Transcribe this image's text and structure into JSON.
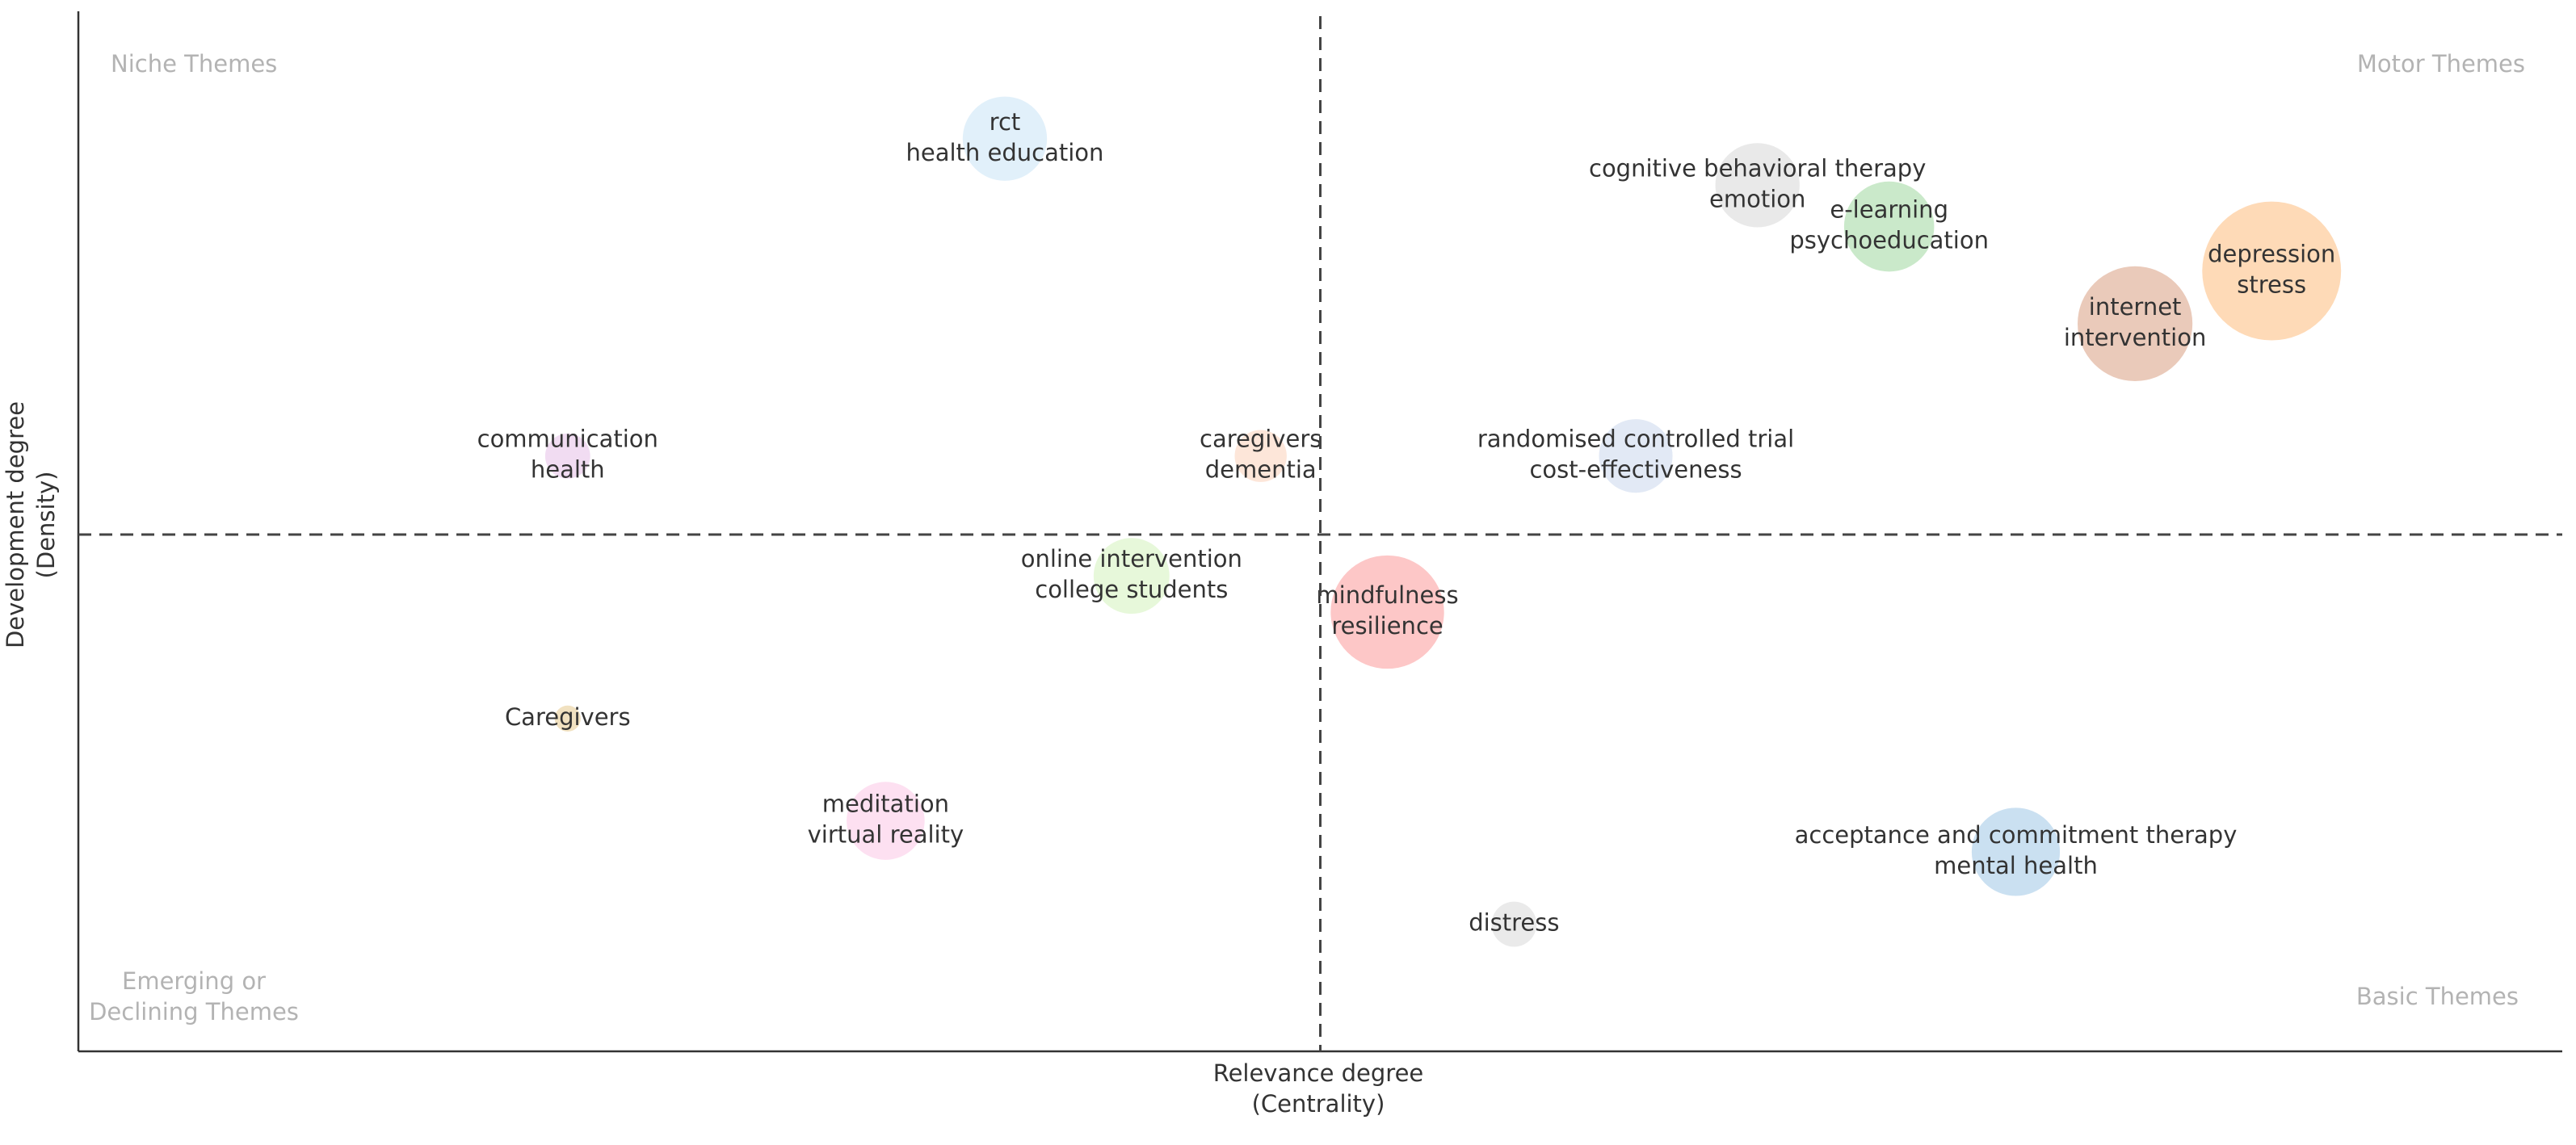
{
  "chart_data": {
    "type": "scatter",
    "subtype": "bubble",
    "title": "",
    "xlabel": [
      "Relevance degree",
      "(Centrality)"
    ],
    "ylabel": [
      "Development degree",
      "(Density)"
    ],
    "xlim": [
      0,
      100
    ],
    "ylim": [
      0,
      100
    ],
    "divider": {
      "x": 50,
      "y": 50
    },
    "grid": false,
    "quadrants": {
      "top_left": [
        "Niche Themes"
      ],
      "top_right": [
        "Motor Themes"
      ],
      "bottom_left": [
        "Emerging or",
        "Declining Themes"
      ],
      "bottom_right": [
        "Basic Themes"
      ]
    },
    "points": [
      {
        "lines": [
          "rct",
          "health education"
        ],
        "x": 37.3,
        "y": 88.3,
        "size": 2.1,
        "color": "#cfe6f7"
      },
      {
        "lines": [
          "cognitive behavioral therapy",
          "emotion"
        ],
        "x": 67.6,
        "y": 83.8,
        "size": 2.1,
        "color": "#dcdcdc"
      },
      {
        "lines": [
          "e-learning",
          "psychoeducation"
        ],
        "x": 72.9,
        "y": 79.8,
        "size": 2.4,
        "color": "#aadcaa"
      },
      {
        "lines": [
          "internet",
          "intervention"
        ],
        "x": 82.8,
        "y": 70.4,
        "size": 3.9,
        "color": "#dda990"
      },
      {
        "lines": [
          "depression",
          "stress"
        ],
        "x": 88.3,
        "y": 75.5,
        "size": 5.7,
        "color": "#fdc48a"
      },
      {
        "lines": [
          "communication",
          "health"
        ],
        "x": 19.7,
        "y": 57.6,
        "size": 0.6,
        "color": "#e8c7ea"
      },
      {
        "lines": [
          "caregivers",
          "dementia"
        ],
        "x": 47.6,
        "y": 57.6,
        "size": 0.8,
        "color": "#fcd6c2"
      },
      {
        "lines": [
          "randomised controlled trial",
          "cost-effectiveness"
        ],
        "x": 62.7,
        "y": 57.6,
        "size": 1.6,
        "color": "#d1dcef"
      },
      {
        "lines": [
          "online intervention",
          "college students"
        ],
        "x": 42.4,
        "y": 46.0,
        "size": 1.7,
        "color": "#d9f3c4"
      },
      {
        "lines": [
          "mindfulness",
          "resilience"
        ],
        "x": 52.7,
        "y": 42.5,
        "size": 3.8,
        "color": "#fca4a4"
      },
      {
        "lines": [
          "Caregivers"
        ],
        "x": 19.7,
        "y": 32.2,
        "size": 0.2,
        "color": "#e8cf9a"
      },
      {
        "lines": [
          "meditation",
          "virtual reality"
        ],
        "x": 32.5,
        "y": 22.3,
        "size": 1.8,
        "color": "#fbcde8"
      },
      {
        "lines": [
          "acceptance and commitment therapy",
          "mental health"
        ],
        "x": 78.0,
        "y": 19.3,
        "size": 2.3,
        "color": "#a9cde9"
      },
      {
        "lines": [
          "distress"
        ],
        "x": 57.8,
        "y": 12.3,
        "size": 0.6,
        "color": "#dddddd"
      }
    ]
  }
}
